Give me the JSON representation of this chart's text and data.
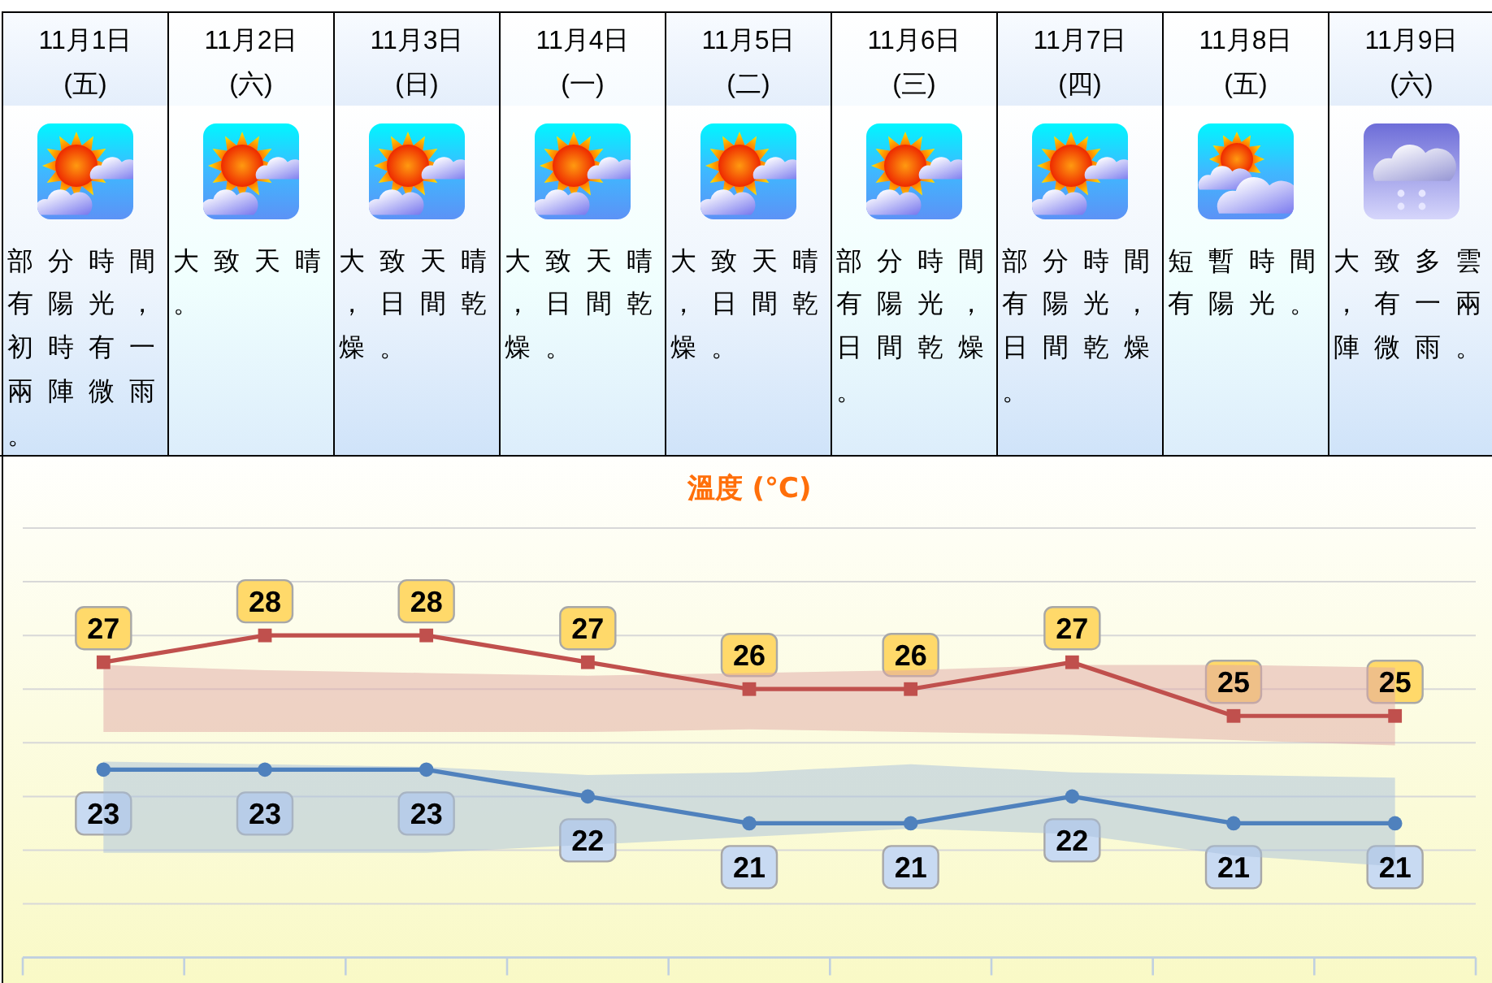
{
  "chart_data": [
    {
      "type": "other",
      "categories": [
        "11月1日\n(五)",
        "11月2日\n(六)",
        "11月3日\n(日)",
        "11月4日\n(一)",
        "11月5日\n(二)",
        "11月6日\n(三)",
        "11月7日\n(四)",
        "11月8日\n(五)",
        "11月9日\n(六)"
      ],
      "annotations": [
        "部分時間有陽光，初時有一兩陣微雨。",
        "大致天晴。",
        "大致天晴，日間乾燥。",
        "大致天晴，日間乾燥。",
        "大致天晴，日間乾燥。",
        "部分時間有陽光，日間乾燥。",
        "部分時間有陽光，日間乾燥。",
        "短暫時間有陽光。",
        "大致多雲，有一兩陣微雨。"
      ]
    },
    {
      "type": "line",
      "title": "溫度 (°C)",
      "categories": [
        null,
        null,
        null,
        null,
        null,
        null,
        null,
        null,
        null
      ],
      "series": [
        {
          "color": "#c0504d",
          "marker": "square",
          "values": [
            27,
            28,
            28,
            27,
            26,
            26,
            27,
            25,
            25
          ],
          "upper": [
            26.9,
            26.7,
            26.6,
            26.5,
            26.6,
            26.7,
            26.9,
            26.9,
            26.8
          ],
          "lower": [
            24.4,
            24.4,
            24.4,
            24.4,
            24.5,
            24.4,
            24.3,
            24.1,
            23.9
          ]
        },
        {
          "color": "#4f81bd",
          "marker": "circle",
          "values": [
            23,
            23,
            23,
            22,
            21,
            21,
            22,
            21,
            21
          ],
          "upper": [
            23.3,
            23.2,
            23.1,
            22.8,
            22.9,
            23.2,
            22.9,
            22.8,
            22.7
          ],
          "lower": [
            19.9,
            19.9,
            19.9,
            20.2,
            20.5,
            20.8,
            20.6,
            19.8,
            19.4
          ]
        }
      ],
      "yticks": [
        {
          "value": 16,
          "label": null
        },
        {
          "value": 18,
          "label": null
        },
        {
          "value": 20,
          "label": null
        },
        {
          "value": 22,
          "label": null
        },
        {
          "value": 24,
          "label": null
        },
        {
          "value": 26,
          "label": null
        },
        {
          "value": 28,
          "label": null
        },
        {
          "value": 30,
          "label": null
        },
        {
          "value": 32,
          "label": null
        }
      ],
      "grid": "y",
      "data_labels": true
    }
  ]
}
